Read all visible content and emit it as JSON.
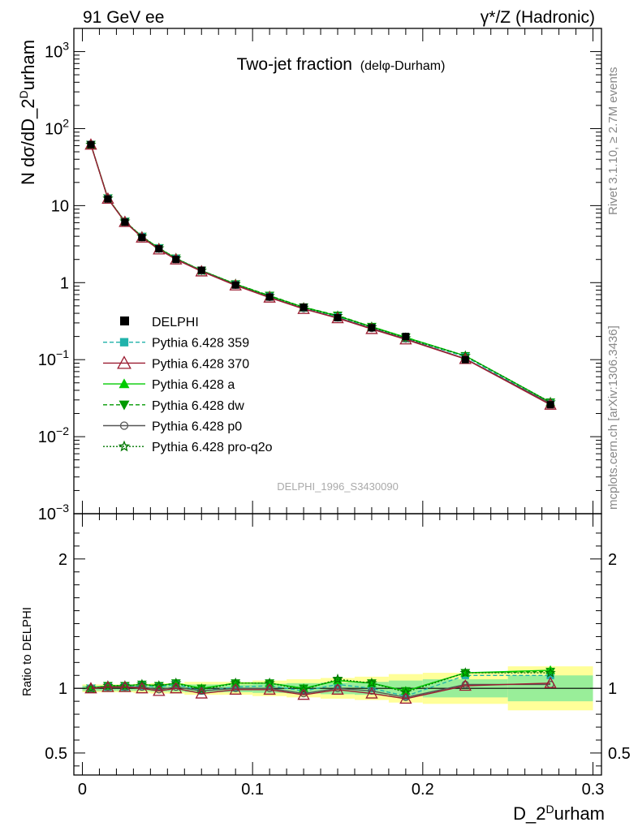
{
  "header": {
    "left": "91 GeV ee",
    "right": "γ*/Z (Hadronic)"
  },
  "side_labels": {
    "rivet": "Rivet 3.1.10, ≥ 2.7M events",
    "mcplots": "mcplots.cern.ch [arXiv:1306.3436]"
  },
  "chart_data": [
    {
      "type": "line",
      "title": "Two-jet fraction",
      "title_suffix": "(delφ-Durham)",
      "ylabel": "N dσ/dD_2^Durham",
      "y_scale": "log",
      "ylim": [
        0.001,
        2000
      ],
      "xlim": [
        -0.005,
        0.305
      ],
      "y_ticks": [
        {
          "v": 1000,
          "base": "10",
          "exp": "3"
        },
        {
          "v": 100,
          "base": "10",
          "exp": "2"
        },
        {
          "v": 10,
          "base": "10",
          "exp": ""
        },
        {
          "v": 1,
          "base": "1",
          "exp": ""
        },
        {
          "v": 0.1,
          "base": "10",
          "exp": "−1"
        },
        {
          "v": 0.01,
          "base": "10",
          "exp": "−2"
        },
        {
          "v": 0.001,
          "base": "10",
          "exp": "−3"
        }
      ],
      "watermark": "DELPHI_1996_S3430090",
      "legend_position": "center-left",
      "x": [
        0.005,
        0.015,
        0.025,
        0.035,
        0.045,
        0.055,
        0.07,
        0.09,
        0.11,
        0.13,
        0.15,
        0.17,
        0.19,
        0.225,
        0.275
      ],
      "data_points": {
        "name": "DELPHI",
        "values": [
          62,
          12.2,
          6.1,
          3.85,
          2.75,
          2.0,
          1.45,
          0.93,
          0.65,
          0.48,
          0.35,
          0.26,
          0.2,
          0.1,
          0.026
        ],
        "color": "#000000"
      },
      "series": [
        {
          "name": "Pythia 6.428 359",
          "color": "#20b2aa",
          "dash": "5,3",
          "marker": "square",
          "values": [
            62,
            12.4,
            6.2,
            3.95,
            2.8,
            2.05,
            1.43,
            0.94,
            0.66,
            0.47,
            0.36,
            0.26,
            0.19,
            0.109,
            0.027
          ]
        },
        {
          "name": "Pythia 6.428 370",
          "color": "#9b1c31",
          "dash": "",
          "marker": "open-triangle",
          "values": [
            62,
            12.3,
            6.15,
            3.85,
            2.7,
            2.0,
            1.4,
            0.92,
            0.64,
            0.455,
            0.345,
            0.25,
            0.183,
            0.102,
            0.026
          ]
        },
        {
          "name": "Pythia 6.428 a",
          "color": "#00cc00",
          "dash": "",
          "marker": "triangle",
          "values": [
            62,
            12.5,
            6.2,
            3.95,
            2.8,
            2.06,
            1.44,
            0.96,
            0.67,
            0.48,
            0.37,
            0.268,
            0.195,
            0.112,
            0.028
          ]
        },
        {
          "name": "Pythia 6.428 dw",
          "color": "#009900",
          "dash": "5,3",
          "marker": "down-triangle",
          "values": [
            62,
            12.5,
            6.25,
            3.98,
            2.82,
            2.07,
            1.44,
            0.96,
            0.68,
            0.48,
            0.375,
            0.268,
            0.195,
            0.112,
            0.028
          ]
        },
        {
          "name": "Pythia 6.428 p0",
          "color": "#555555",
          "dash": "",
          "marker": "open-circle",
          "values": [
            62,
            12.3,
            6.15,
            3.87,
            2.73,
            2.02,
            1.42,
            0.93,
            0.645,
            0.46,
            0.35,
            0.255,
            0.186,
            0.103,
            0.027
          ]
        },
        {
          "name": "Pythia 6.428 pro-q2o",
          "color": "#007700",
          "dash": "2,2",
          "marker": "open-star",
          "values": [
            62,
            12.4,
            6.25,
            3.98,
            2.8,
            2.07,
            1.43,
            0.96,
            0.67,
            0.475,
            0.37,
            0.265,
            0.19,
            0.112,
            0.028
          ]
        }
      ]
    },
    {
      "type": "line",
      "ylabel": "Ratio to DELPHI",
      "xlabel": "D_2^Durham",
      "ylim": [
        0.33,
        2.35
      ],
      "xlim": [
        -0.005,
        0.305
      ],
      "y_ticks": [
        {
          "v": 2,
          "label": "2"
        },
        {
          "v": 1,
          "label": "1"
        },
        {
          "v": 0.5,
          "label": "0.5"
        }
      ],
      "x_ticks": [
        {
          "v": 0,
          "label": "0"
        },
        {
          "v": 0.1,
          "label": "0.1"
        },
        {
          "v": 0.2,
          "label": "0.2"
        },
        {
          "v": 0.3,
          "label": "0.3"
        }
      ],
      "bin_edges": [
        0,
        0.01,
        0.02,
        0.03,
        0.04,
        0.05,
        0.06,
        0.08,
        0.1,
        0.12,
        0.14,
        0.16,
        0.18,
        0.2,
        0.25,
        0.3
      ],
      "band_outer": [
        0.03,
        0.03,
        0.03,
        0.035,
        0.04,
        0.04,
        0.05,
        0.05,
        0.06,
        0.07,
        0.08,
        0.09,
        0.11,
        0.12,
        0.17
      ],
      "band_inner": [
        0.02,
        0.02,
        0.02,
        0.02,
        0.025,
        0.025,
        0.03,
        0.03,
        0.035,
        0.04,
        0.045,
        0.05,
        0.06,
        0.07,
        0.1
      ],
      "band_colors": {
        "outer": "#ffff99",
        "inner": "#99ee99"
      },
      "ratios": [
        [
          1.0,
          1.01,
          1.01,
          1.02,
          1.01,
          1.03,
          0.98,
          1.01,
          1.02,
          0.98,
          1.03,
          1.0,
          0.94,
          1.1,
          1.1
        ],
        [
          1.0,
          1.01,
          1.01,
          1.0,
          0.98,
          1.0,
          0.96,
          0.99,
          0.99,
          0.95,
          0.99,
          0.96,
          0.92,
          1.02,
          1.04
        ],
        [
          1.0,
          1.02,
          1.02,
          1.03,
          1.02,
          1.04,
          1.0,
          1.04,
          1.04,
          1.0,
          1.06,
          1.04,
          0.98,
          1.12,
          1.14
        ],
        [
          1.0,
          1.02,
          1.02,
          1.03,
          1.02,
          1.04,
          1.0,
          1.04,
          1.04,
          1.0,
          1.06,
          1.04,
          0.98,
          1.12,
          1.13
        ],
        [
          1.0,
          1.01,
          1.01,
          1.01,
          0.99,
          1.01,
          0.98,
          1.0,
          1.0,
          0.96,
          1.0,
          0.98,
          0.93,
          1.03,
          1.03
        ],
        [
          1.0,
          1.02,
          1.02,
          1.03,
          1.02,
          1.04,
          0.99,
          1.04,
          1.04,
          0.99,
          1.07,
          1.04,
          0.97,
          1.12,
          1.12
        ]
      ]
    }
  ]
}
